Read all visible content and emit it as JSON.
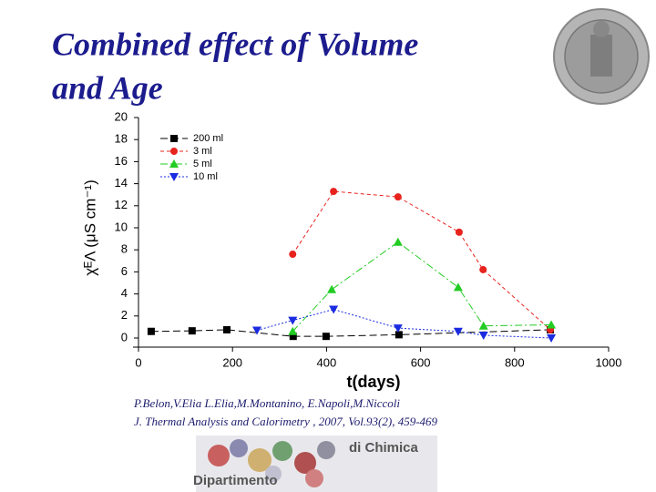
{
  "slide_title": [
    "Combined effect of Volume",
    "and Age"
  ],
  "chart_data": {
    "type": "line",
    "x_label": "t(days)",
    "y_label": "χᴱΛ (μS cm⁻¹)",
    "xlim": [
      0,
      1000
    ],
    "xticks": [
      0,
      200,
      400,
      600,
      800,
      1000
    ],
    "ylim": [
      0,
      20
    ],
    "yticks": [
      0,
      2,
      4,
      6,
      8,
      10,
      12,
      14,
      16,
      18,
      20
    ],
    "legend": "upper left",
    "series": [
      {
        "name": "200 ml",
        "color": "#000000",
        "marker": "square",
        "x": [
          27,
          114,
          188,
          329,
          399,
          554,
          876
        ],
        "values": [
          0.6,
          0.65,
          0.75,
          0.15,
          0.15,
          0.3,
          0.75
        ]
      },
      {
        "name": "3 ml",
        "color": "#e8231e",
        "marker": "circle",
        "x": [
          328,
          415,
          552,
          682,
          733,
          876
        ],
        "values": [
          7.6,
          13.3,
          12.8,
          9.6,
          6.2,
          0.75
        ]
      },
      {
        "name": "5 ml",
        "color": "#22cc22",
        "marker": "triangle-up",
        "x": [
          328,
          411,
          552,
          680,
          734,
          878
        ],
        "values": [
          0.6,
          4.4,
          8.7,
          4.6,
          1.1,
          1.2
        ]
      },
      {
        "name": "10 ml",
        "color": "#1b2be0",
        "marker": "triangle-down",
        "x": [
          252,
          328,
          415,
          552,
          680,
          734,
          878
        ],
        "values": [
          0.7,
          1.6,
          2.6,
          0.9,
          0.6,
          0.25,
          0
        ]
      }
    ]
  },
  "citation": [
    "P.Belon,V.Elia L.Elia,M.Montanino, E.Napoli,M.Niccoli",
    "J. Thermal Analysis and Calorimetry , 2007, Vol.93(2), 459-469"
  ],
  "logo": {
    "top": "di Chimica",
    "bottom": "Dipartimento"
  }
}
